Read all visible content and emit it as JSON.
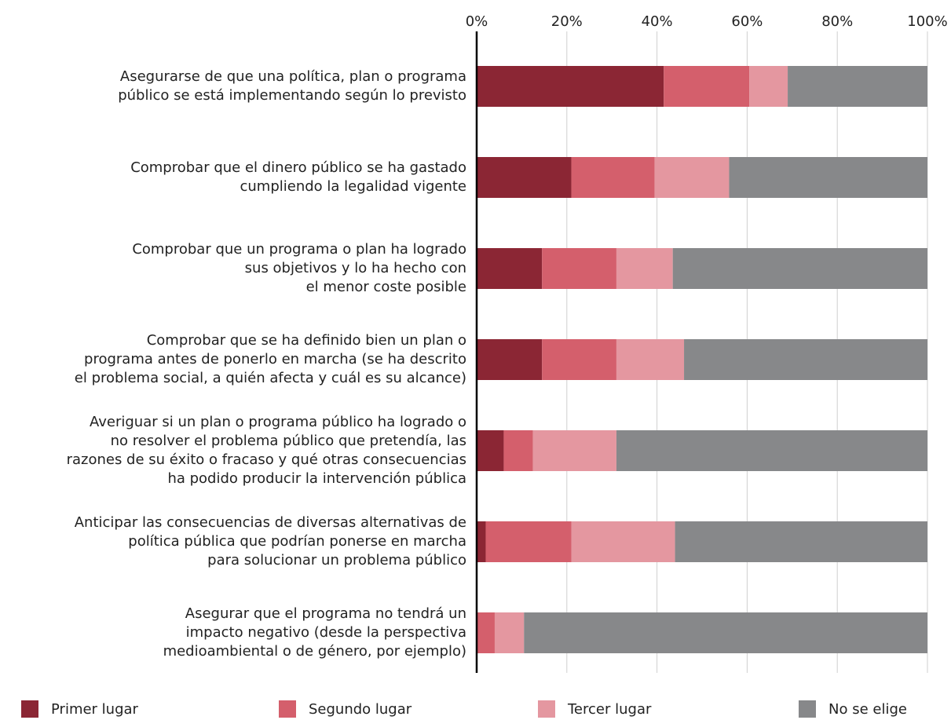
{
  "chart_data": {
    "type": "stacked-bar-horizontal",
    "categories": [
      [
        "Asegurarse de que una política, plan o programa",
        "público se está implementando según lo previsto"
      ],
      [
        "Comprobar que el dinero público se ha gastado",
        "cumpliendo la legalidad vigente"
      ],
      [
        "Comprobar que un programa o plan ha logrado",
        "sus objetivos y lo ha hecho con",
        "el menor coste posible"
      ],
      [
        "Comprobar que se ha definido bien un plan o",
        "programa antes de ponerlo en marcha (se ha descrito",
        "el problema social, a quién afecta y cuál es su alcance)"
      ],
      [
        "Averiguar si un plan o programa público ha logrado o",
        "no resolver el problema público que pretendía, las",
        "razones de su éxito o fracaso y qué otras consecuencias",
        "ha podido producir la intervención pública"
      ],
      [
        "Anticipar las consecuencias de diversas alternativas de",
        "política pública que podrían ponerse en marcha",
        "para solucionar  un problema público"
      ],
      [
        "Asegurar que el programa no tendrá un",
        "impacto negativo (desde la perspectiva",
        "medioambiental o de género, por ejemplo)"
      ]
    ],
    "series": [
      {
        "name": "Primer lugar",
        "color": "#8b2634",
        "values": [
          41.5,
          21,
          14.5,
          14.5,
          6,
          2,
          0
        ]
      },
      {
        "name": "Segundo lugar",
        "color": "#d45f6c",
        "values": [
          19,
          18.5,
          16.5,
          16.5,
          6.5,
          19,
          4
        ]
      },
      {
        "name": "Tercer lugar",
        "color": "#e497a0",
        "values": [
          8.5,
          16.5,
          12.5,
          15,
          18.5,
          23,
          6.5
        ]
      },
      {
        "name": "No se elige",
        "color": "#87888a",
        "values": [
          31,
          44,
          56.5,
          54,
          69,
          56,
          89.5
        ]
      }
    ],
    "xlim": [
      0,
      100
    ],
    "xticks": [
      {
        "value": 0,
        "label": "0%"
      },
      {
        "value": 20,
        "label": "20%"
      },
      {
        "value": 40,
        "label": "40%"
      },
      {
        "value": 60,
        "label": "60%"
      },
      {
        "value": 80,
        "label": "80%"
      },
      {
        "value": 100,
        "label": "100%"
      }
    ],
    "grid": true,
    "legend": "bottom"
  }
}
